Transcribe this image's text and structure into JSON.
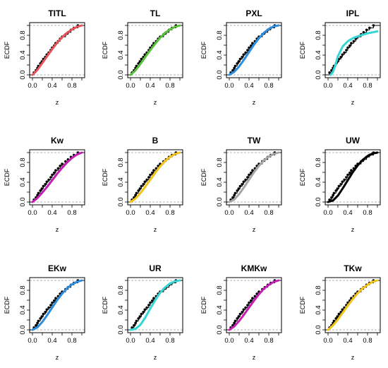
{
  "chart_data": [
    {
      "type": "line",
      "title": "TITL",
      "xlabel": "z",
      "ylabel": "ECDF",
      "xlim": [
        0,
        1
      ],
      "ylim": [
        0,
        1
      ],
      "xticks": [
        "0.0",
        "0.4",
        "0.8"
      ],
      "yticks": [
        "0.0",
        "0.4",
        "0.8"
      ],
      "curve": {
        "color": "#e8525a",
        "x": [
          0,
          0.1,
          0.2,
          0.3,
          0.4,
          0.5,
          0.6,
          0.7,
          0.8,
          0.9,
          1.0
        ],
        "y": [
          0,
          0.1,
          0.24,
          0.38,
          0.52,
          0.65,
          0.76,
          0.85,
          0.92,
          0.97,
          1.0
        ]
      }
    },
    {
      "type": "line",
      "title": "TL",
      "xlabel": "z",
      "ylabel": "ECDF",
      "xlim": [
        0,
        1
      ],
      "ylim": [
        0,
        1
      ],
      "xticks": [
        "0.0",
        "0.4",
        "0.8"
      ],
      "yticks": [
        "0.0",
        "0.4",
        "0.8"
      ],
      "curve": {
        "color": "#57c13a",
        "x": [
          0,
          0.1,
          0.2,
          0.3,
          0.4,
          0.5,
          0.6,
          0.7,
          0.8,
          0.9,
          1.0
        ],
        "y": [
          0,
          0.09,
          0.22,
          0.36,
          0.5,
          0.63,
          0.75,
          0.85,
          0.92,
          0.97,
          1.0
        ]
      }
    },
    {
      "type": "line",
      "title": "PXL",
      "xlabel": "z",
      "ylabel": "ECDF",
      "xlim": [
        0,
        1
      ],
      "ylim": [
        0,
        1
      ],
      "xticks": [
        "0.0",
        "0.4",
        "0.8"
      ],
      "yticks": [
        "0.0",
        "0.4",
        "0.8"
      ],
      "curve": {
        "color": "#2c8ee0",
        "x": [
          0,
          0.1,
          0.2,
          0.3,
          0.4,
          0.5,
          0.6,
          0.7,
          0.8,
          0.9,
          1.0
        ],
        "y": [
          0,
          0.06,
          0.17,
          0.31,
          0.46,
          0.61,
          0.74,
          0.85,
          0.93,
          0.98,
          1.0
        ]
      }
    },
    {
      "type": "line",
      "title": "IPL",
      "xlabel": "z",
      "ylabel": "ECDF",
      "xlim": [
        0,
        1
      ],
      "ylim": [
        0,
        1
      ],
      "xticks": [
        "0.0",
        "0.4",
        "0.8"
      ],
      "yticks": [
        "0.0",
        "0.4",
        "0.8"
      ],
      "curve": {
        "color": "#34d6d6",
        "x": [
          0.05,
          0.1,
          0.15,
          0.2,
          0.3,
          0.4,
          0.5,
          0.6,
          0.7,
          0.8,
          0.9,
          1.0
        ],
        "y": [
          0.0,
          0.06,
          0.2,
          0.38,
          0.58,
          0.68,
          0.74,
          0.78,
          0.81,
          0.84,
          0.86,
          0.88
        ]
      }
    },
    {
      "type": "line",
      "title": "Kw",
      "xlabel": "z",
      "ylabel": "ECDF",
      "xlim": [
        0,
        1
      ],
      "ylim": [
        0,
        1
      ],
      "xticks": [
        "0.0",
        "0.4",
        "0.8"
      ],
      "yticks": [
        "0.0",
        "0.4",
        "0.8"
      ],
      "curve": {
        "color": "#c41fb3",
        "x": [
          0,
          0.1,
          0.2,
          0.3,
          0.4,
          0.5,
          0.6,
          0.7,
          0.8,
          0.9,
          1.0
        ],
        "y": [
          0,
          0.08,
          0.19,
          0.31,
          0.44,
          0.57,
          0.69,
          0.8,
          0.89,
          0.96,
          1.0
        ]
      }
    },
    {
      "type": "line",
      "title": "B",
      "xlabel": "z",
      "ylabel": "ECDF",
      "xlim": [
        0,
        1
      ],
      "ylim": [
        0,
        1
      ],
      "xticks": [
        "0.0",
        "0.4",
        "0.8"
      ],
      "yticks": [
        "0.0",
        "0.4",
        "0.8"
      ],
      "curve": {
        "color": "#f2c319",
        "x": [
          0,
          0.1,
          0.2,
          0.3,
          0.4,
          0.5,
          0.6,
          0.7,
          0.8,
          0.9,
          1.0
        ],
        "y": [
          0,
          0.07,
          0.18,
          0.31,
          0.45,
          0.59,
          0.72,
          0.83,
          0.91,
          0.97,
          1.0
        ]
      }
    },
    {
      "type": "line",
      "title": "TW",
      "xlabel": "z",
      "ylabel": "ECDF",
      "xlim": [
        0,
        1
      ],
      "ylim": [
        0,
        1
      ],
      "xticks": [
        "0.0",
        "0.4",
        "0.8"
      ],
      "yticks": [
        "0.0",
        "0.4",
        "0.8"
      ],
      "curve": {
        "color": "#a6a6a6",
        "x": [
          0,
          0.1,
          0.2,
          0.3,
          0.4,
          0.5,
          0.6,
          0.7,
          0.8,
          0.9,
          1.0
        ],
        "y": [
          0,
          0.05,
          0.16,
          0.3,
          0.45,
          0.6,
          0.73,
          0.84,
          0.92,
          0.97,
          1.0
        ]
      }
    },
    {
      "type": "line",
      "title": "UW",
      "xlabel": "z",
      "ylabel": "ECDF",
      "xlim": [
        0,
        1
      ],
      "ylim": [
        0,
        1
      ],
      "xticks": [
        "0.0",
        "0.4",
        "0.8"
      ],
      "yticks": [
        "0.0",
        "0.4",
        "0.8"
      ],
      "curve": {
        "color": "#000000",
        "x": [
          0,
          0.1,
          0.2,
          0.3,
          0.4,
          0.5,
          0.6,
          0.7,
          0.8,
          0.9,
          1.0
        ],
        "y": [
          0,
          0.03,
          0.13,
          0.28,
          0.44,
          0.6,
          0.74,
          0.85,
          0.93,
          0.98,
          1.0
        ]
      }
    },
    {
      "type": "line",
      "title": "EKw",
      "xlabel": "z",
      "ylabel": "ECDF",
      "xlim": [
        0,
        1
      ],
      "ylim": [
        0,
        1
      ],
      "xticks": [
        "0.0",
        "0.4",
        "0.8"
      ],
      "yticks": [
        "0.0",
        "0.4",
        "0.8"
      ],
      "curve": {
        "color": "#2c8ee0",
        "x": [
          0,
          0.1,
          0.2,
          0.3,
          0.4,
          0.5,
          0.6,
          0.7,
          0.8,
          0.9,
          1.0
        ],
        "y": [
          0,
          0.05,
          0.16,
          0.3,
          0.45,
          0.6,
          0.73,
          0.84,
          0.92,
          0.97,
          1.0
        ]
      }
    },
    {
      "type": "line",
      "title": "UR",
      "xlabel": "z",
      "ylabel": "ECDF",
      "xlim": [
        0,
        1
      ],
      "ylim": [
        0,
        1
      ],
      "xticks": [
        "0.0",
        "0.4",
        "0.8"
      ],
      "yticks": [
        "0.0",
        "0.4",
        "0.8"
      ],
      "curve": {
        "color": "#34d6d6",
        "x": [
          0,
          0.1,
          0.2,
          0.3,
          0.4,
          0.5,
          0.6,
          0.7,
          0.8,
          0.9,
          1.0
        ],
        "y": [
          0,
          0.02,
          0.1,
          0.25,
          0.43,
          0.6,
          0.75,
          0.86,
          0.94,
          0.98,
          1.0
        ]
      }
    },
    {
      "type": "line",
      "title": "KMKw",
      "xlabel": "z",
      "ylabel": "ECDF",
      "xlim": [
        0,
        1
      ],
      "ylim": [
        0,
        1
      ],
      "xticks": [
        "0.0",
        "0.4",
        "0.8"
      ],
      "yticks": [
        "0.0",
        "0.4",
        "0.8"
      ],
      "curve": {
        "color": "#c41fb3",
        "x": [
          0,
          0.1,
          0.2,
          0.3,
          0.4,
          0.5,
          0.6,
          0.7,
          0.8,
          0.9,
          1.0
        ],
        "y": [
          0,
          0.07,
          0.18,
          0.31,
          0.45,
          0.59,
          0.72,
          0.83,
          0.91,
          0.97,
          1.0
        ]
      }
    },
    {
      "type": "line",
      "title": "TKw",
      "xlabel": "z",
      "ylabel": "ECDF",
      "xlim": [
        0,
        1
      ],
      "ylim": [
        0,
        1
      ],
      "xticks": [
        "0.0",
        "0.4",
        "0.8"
      ],
      "yticks": [
        "0.0",
        "0.4",
        "0.8"
      ],
      "curve": {
        "color": "#f2c319",
        "x": [
          0,
          0.1,
          0.2,
          0.3,
          0.4,
          0.5,
          0.6,
          0.7,
          0.8,
          0.9,
          1.0
        ],
        "y": [
          0,
          0.09,
          0.21,
          0.35,
          0.49,
          0.62,
          0.74,
          0.84,
          0.91,
          0.97,
          1.0
        ]
      }
    }
  ],
  "ecdf_points": {
    "x": [
      0.03,
      0.07,
      0.1,
      0.12,
      0.16,
      0.19,
      0.22,
      0.26,
      0.29,
      0.33,
      0.37,
      0.4,
      0.44,
      0.47,
      0.52,
      0.56,
      0.6,
      0.67,
      0.72,
      0.78,
      0.84,
      0.92
    ],
    "y": [
      0.045,
      0.09,
      0.136,
      0.18,
      0.23,
      0.27,
      0.32,
      0.36,
      0.41,
      0.45,
      0.5,
      0.55,
      0.59,
      0.64,
      0.68,
      0.73,
      0.77,
      0.82,
      0.86,
      0.91,
      0.95,
      1.0
    ]
  }
}
